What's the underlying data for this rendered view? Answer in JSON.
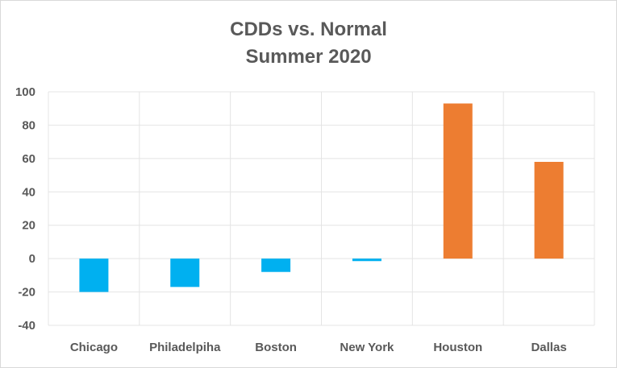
{
  "chart_data": {
    "type": "bar",
    "title_line1": "CDDs  vs. Normal",
    "title_line2": "Summer 2020",
    "xlabel": "",
    "ylabel": "",
    "categories": [
      "Chicago",
      "Philadelpiha",
      "Boston",
      "New York",
      "Houston",
      "Dallas"
    ],
    "values": [
      -20,
      -17,
      -8,
      -1.5,
      93,
      58
    ],
    "bar_colors": [
      "#00b0f0",
      "#00b0f0",
      "#00b0f0",
      "#00b0f0",
      "#ed7d31",
      "#ed7d31"
    ],
    "ylim": [
      -40,
      100
    ],
    "yticks": [
      "-40",
      "-20",
      "0",
      "20",
      "40",
      "60",
      "80",
      "100"
    ],
    "gridlines": true,
    "legend": "none"
  }
}
